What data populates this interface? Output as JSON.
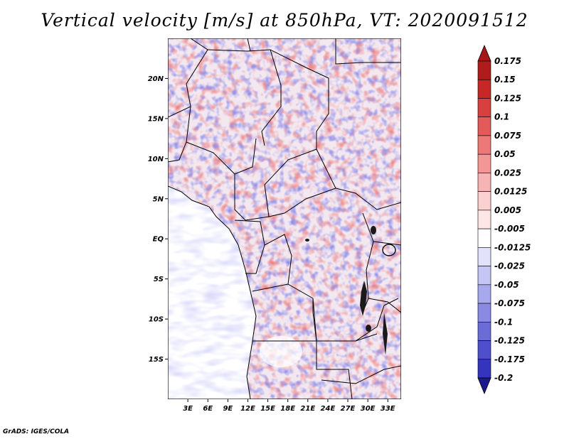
{
  "title": "Vertical velocity [m/s] at 850hPa, VT: 2020091512",
  "credit": "GrADS: IGES/COLA",
  "map": {
    "variable": "Vertical velocity",
    "units": "m/s",
    "level": "850hPa",
    "valid_time": "2020091512",
    "lat_range": [
      -20,
      25
    ],
    "lon_range": [
      0,
      35
    ],
    "lat_ticks": [
      {
        "value": 20,
        "label": "20N"
      },
      {
        "value": 15,
        "label": "15N"
      },
      {
        "value": 10,
        "label": "10N"
      },
      {
        "value": 5,
        "label": "5N"
      },
      {
        "value": 0,
        "label": "EQ"
      },
      {
        "value": -5,
        "label": "5S"
      },
      {
        "value": -10,
        "label": "10S"
      },
      {
        "value": -15,
        "label": "15S"
      }
    ],
    "lon_ticks": [
      {
        "value": 3,
        "label": "3E"
      },
      {
        "value": 6,
        "label": "6E"
      },
      {
        "value": 9,
        "label": "9E"
      },
      {
        "value": 12,
        "label": "12E"
      },
      {
        "value": 15,
        "label": "15E"
      },
      {
        "value": 18,
        "label": "18E"
      },
      {
        "value": 21,
        "label": "21E"
      },
      {
        "value": 24,
        "label": "24E"
      },
      {
        "value": 27,
        "label": "27E"
      },
      {
        "value": 30,
        "label": "30E"
      },
      {
        "value": 33,
        "label": "33E"
      }
    ]
  },
  "colorbar": {
    "levels": [
      {
        "label": "0.175",
        "color": "#b01c1c"
      },
      {
        "label": "0.15",
        "color": "#c62828"
      },
      {
        "label": "0.125",
        "color": "#d84040"
      },
      {
        "label": "0.1",
        "color": "#e35a5a"
      },
      {
        "label": "0.075",
        "color": "#ec7878"
      },
      {
        "label": "0.05",
        "color": "#f29696"
      },
      {
        "label": "0.025",
        "color": "#f7b4b4"
      },
      {
        "label": "0.0125",
        "color": "#fbd0d0"
      },
      {
        "label": "0.005",
        "color": "#fde6e6"
      },
      {
        "label": "-0.005",
        "color": "#ffffff"
      },
      {
        "label": "-0.0125",
        "color": "#e2e2fb"
      },
      {
        "label": "-0.025",
        "color": "#c6c6f4"
      },
      {
        "label": "-0.05",
        "color": "#a8a8ec"
      },
      {
        "label": "-0.075",
        "color": "#8a8ae3"
      },
      {
        "label": "-0.1",
        "color": "#6c6cd8"
      },
      {
        "label": "-0.125",
        "color": "#4f4fcc"
      },
      {
        "label": "-0.175",
        "color": "#3434bc"
      },
      {
        "label": "-0.2",
        "color": "#2020a8"
      }
    ],
    "over_color": "#a51818",
    "under_color": "#1a1a8c"
  }
}
